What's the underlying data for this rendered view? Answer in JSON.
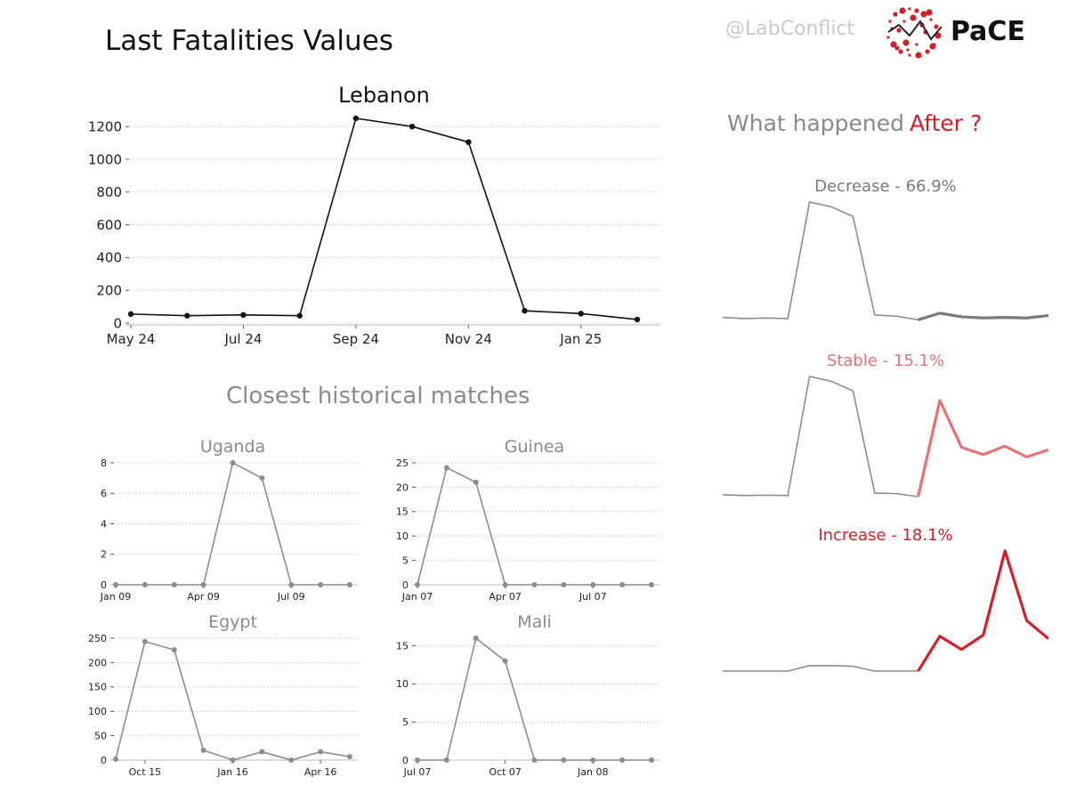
{
  "header": {
    "title": "Last Fatalities Values",
    "handle": "@LabConflict",
    "logo_text": "PaCE",
    "subtitle": "Closest historical matches",
    "what_happened": "What happened",
    "after": "After ?"
  },
  "colors": {
    "main_line": "#111111",
    "match_line": "#8c8c8c",
    "decrease": "#7a7a7a",
    "stable": "#e57373",
    "increase": "#d0202a",
    "logo_red": "#d0202a"
  },
  "chart_data": [
    {
      "id": "lebanon",
      "type": "line",
      "title": "Lebanon",
      "x": [
        "2024-05",
        "2024-06",
        "2024-07",
        "2024-08",
        "2024-09",
        "2024-10",
        "2024-11",
        "2024-12",
        "2025-01",
        "2025-02"
      ],
      "values": [
        55,
        45,
        50,
        45,
        1250,
        1200,
        1105,
        75,
        58,
        22
      ],
      "xticks": [
        "May 24",
        "Jul 24",
        "Sep 24",
        "Nov 24",
        "Jan 25"
      ],
      "yticks": [
        "0",
        "200",
        "400",
        "600",
        "800",
        "1000",
        "1200"
      ],
      "ylim": [
        0,
        1250
      ],
      "grid": true
    },
    {
      "id": "uganda",
      "type": "line",
      "title": "Uganda",
      "x": [
        "2009-01",
        "2009-02",
        "2009-03",
        "2009-04",
        "2009-05",
        "2009-06",
        "2009-07",
        "2009-08",
        "2009-09"
      ],
      "values": [
        0,
        0,
        0,
        0,
        8,
        7,
        0,
        0,
        0
      ],
      "xticks": [
        "Jan 09",
        "Apr 09",
        "Jul 09"
      ],
      "yticks": [
        "0",
        "2",
        "4",
        "6",
        "8"
      ],
      "ylim": [
        0,
        8
      ],
      "grid": true
    },
    {
      "id": "guinea",
      "type": "line",
      "title": "Guinea",
      "x": [
        "2007-01",
        "2007-02",
        "2007-03",
        "2007-04",
        "2007-05",
        "2007-06",
        "2007-07",
        "2007-08",
        "2007-09"
      ],
      "values": [
        0,
        24,
        21,
        0,
        0,
        0,
        0,
        0,
        0
      ],
      "xticks": [
        "Jan 07",
        "Apr 07",
        "Jul 07"
      ],
      "yticks": [
        "0",
        "5",
        "10",
        "15",
        "20",
        "25"
      ],
      "ylim": [
        0,
        25
      ],
      "grid": true
    },
    {
      "id": "egypt",
      "type": "line",
      "title": "Egypt",
      "x": [
        "2015-09",
        "2015-10",
        "2015-11",
        "2015-12",
        "2016-01",
        "2016-02",
        "2016-03",
        "2016-04",
        "2016-05"
      ],
      "values": [
        2,
        243,
        226,
        20,
        0,
        17,
        0,
        17,
        7
      ],
      "xticks": [
        "Oct 15",
        "Jan 16",
        "Apr 16"
      ],
      "yticks": [
        "0",
        "50",
        "100",
        "150",
        "200",
        "250"
      ],
      "ylim": [
        0,
        250
      ],
      "grid": true
    },
    {
      "id": "mali",
      "type": "line",
      "title": "Mali",
      "x": [
        "2007-07",
        "2007-08",
        "2007-09",
        "2007-10",
        "2007-11",
        "2007-12",
        "2008-01",
        "2008-02",
        "2008-03"
      ],
      "values": [
        0,
        0,
        16,
        13,
        0,
        0,
        0,
        0,
        0
      ],
      "xticks": [
        "Jul 07",
        "Oct 07",
        "Jan 08"
      ],
      "yticks": [
        "0",
        "5",
        "10",
        "15"
      ],
      "ylim": [
        0,
        16
      ],
      "grid": true
    },
    {
      "id": "decrease",
      "type": "line",
      "title": "Decrease - 66.9%",
      "history": [
        0.04,
        0.03,
        0.035,
        0.03,
        1.0,
        0.96,
        0.88,
        0.06,
        0.05,
        0.02
      ],
      "forecast": [
        0.02,
        0.075,
        0.045,
        0.035,
        0.04,
        0.035,
        0.055
      ],
      "grid": false
    },
    {
      "id": "stable",
      "type": "line",
      "title": "Stable - 15.1%",
      "history": [
        0.015,
        0.01,
        0.012,
        0.01,
        1.0,
        0.96,
        0.88,
        0.03,
        0.025,
        0.0
      ],
      "forecast": [
        0.0,
        0.8,
        0.41,
        0.35,
        0.42,
        0.33,
        0.39
      ],
      "grid": false
    },
    {
      "id": "increase",
      "type": "line",
      "title": "Increase - 18.1%",
      "history": [
        0.0,
        0.0,
        0.0,
        0.0,
        0.045,
        0.045,
        0.04,
        0.0,
        0.0,
        0.0
      ],
      "forecast": [
        0.0,
        0.29,
        0.18,
        0.3,
        1.0,
        0.42,
        0.27
      ],
      "grid": false
    }
  ]
}
